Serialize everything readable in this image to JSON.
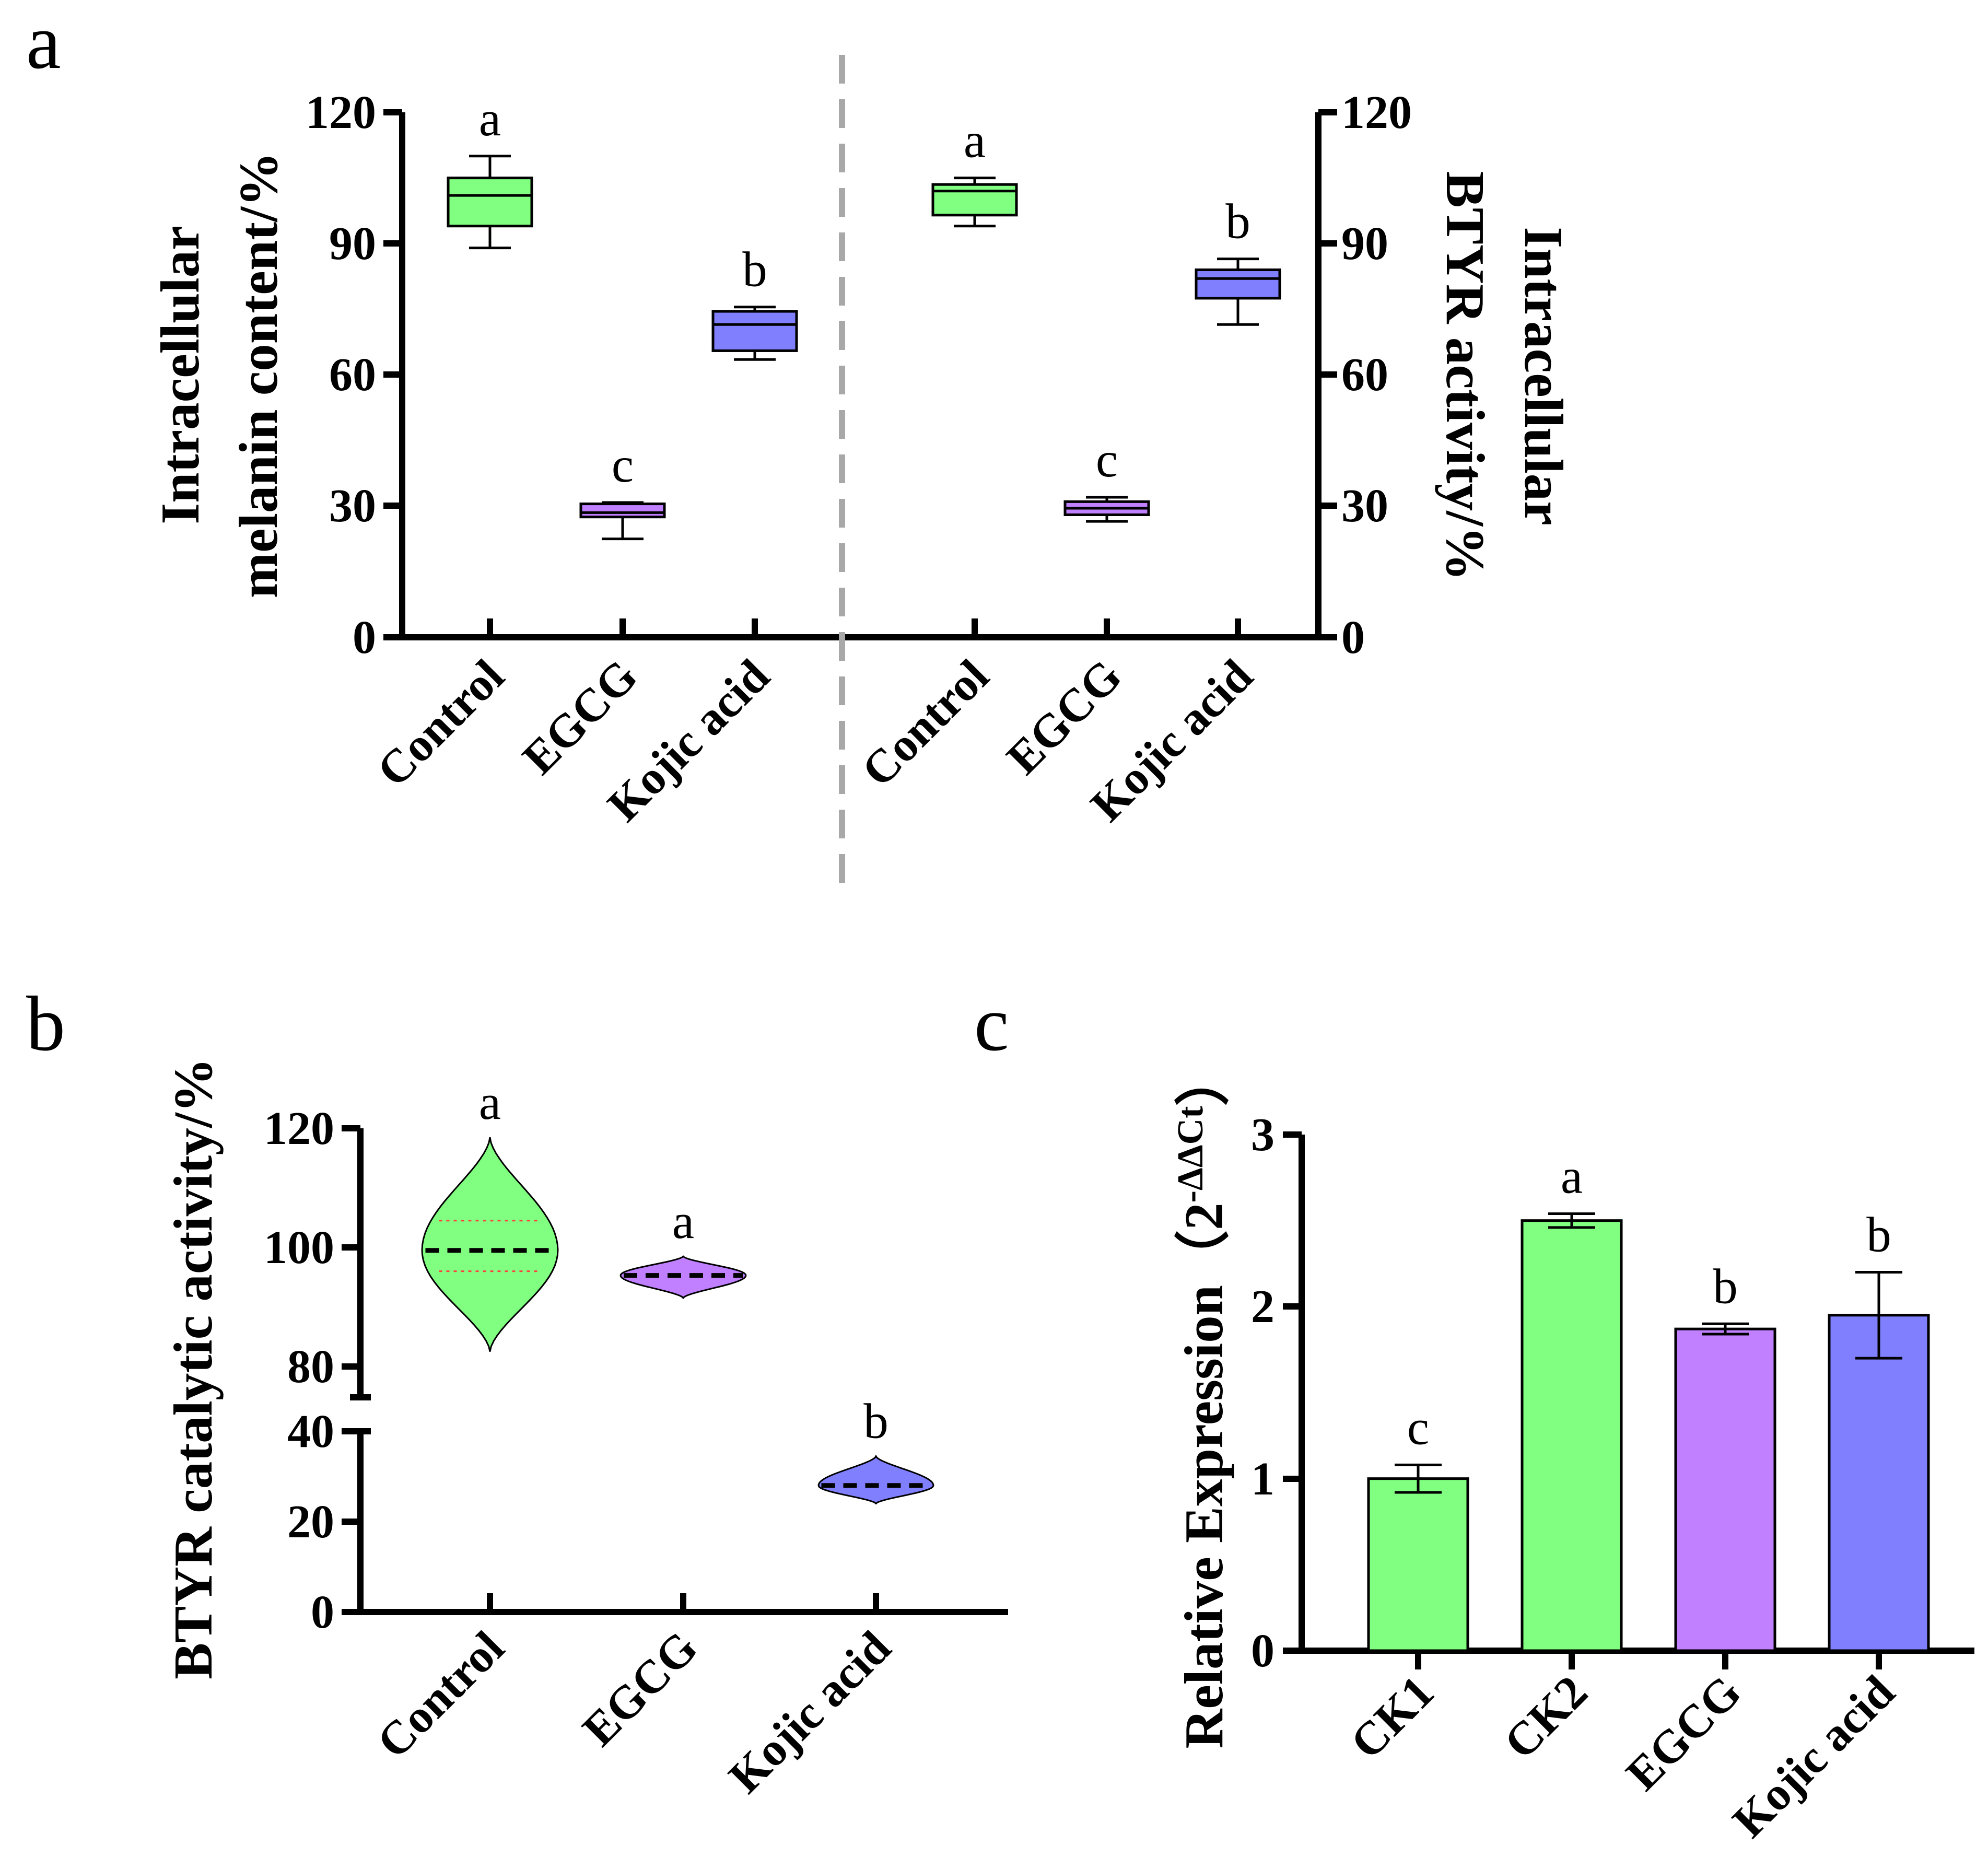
{
  "panels": {
    "a": "a",
    "b": "b",
    "c": "c"
  },
  "chart_data": [
    {
      "id": "a-left",
      "type": "box",
      "ylabel_line1": "Intracellular",
      "ylabel_line2": "melanin content/%",
      "ylim": [
        0,
        120
      ],
      "yticks": [
        "0",
        "30",
        "60",
        "90",
        "120"
      ],
      "categories": [
        "Control",
        "EGCG",
        "Kojic acid"
      ],
      "colors": [
        "#80ff80",
        "#c080ff",
        "#8080ff"
      ],
      "boxes": [
        {
          "min": 89,
          "q1": 94,
          "median": 101,
          "q3": 105,
          "max": 110
        },
        {
          "min": 22.5,
          "q1": 27.5,
          "median": 28.5,
          "q3": 30.5,
          "max": 30.8
        },
        {
          "min": 63.5,
          "q1": 65.5,
          "median": 71.5,
          "q3": 74.5,
          "max": 75.5
        }
      ],
      "significance": [
        "a",
        "c",
        "b"
      ]
    },
    {
      "id": "a-right",
      "type": "box",
      "ylabel_line1": "Intracellular",
      "ylabel_line2": "BTYR  activity/%",
      "ylim": [
        0,
        120
      ],
      "yticks": [
        "0",
        "30",
        "60",
        "90",
        "120"
      ],
      "categories": [
        "Control",
        "EGCG",
        "Kojic acid"
      ],
      "colors": [
        "#80ff80",
        "#c080ff",
        "#8080ff"
      ],
      "boxes": [
        {
          "min": 94,
          "q1": 96.5,
          "median": 102,
          "q3": 103.5,
          "max": 105
        },
        {
          "min": 26.5,
          "q1": 28,
          "median": 29.5,
          "q3": 31,
          "max": 32
        },
        {
          "min": 71.5,
          "q1": 77.5,
          "median": 82,
          "q3": 84,
          "max": 86.5
        }
      ],
      "significance": [
        "a",
        "c",
        "b"
      ]
    },
    {
      "id": "b",
      "type": "violin",
      "ylabel": "BTYR  catalytic activity/%",
      "axis_break": {
        "lower": [
          0,
          40
        ],
        "upper": [
          80,
          120
        ]
      },
      "yticks_upper": [
        "80",
        "100",
        "120"
      ],
      "yticks_lower": [
        "0",
        "20",
        "40"
      ],
      "categories": [
        "Control",
        "EGCG",
        "Kojic acid"
      ],
      "colors": [
        "#80ff80",
        "#c080ff",
        "#8080ff"
      ],
      "violins": [
        {
          "min": 82.5,
          "max": 118.5,
          "median": 99.5,
          "q1": 96,
          "q3": 104.5
        },
        {
          "min": 91.5,
          "max": 98.5,
          "median": 95.3
        },
        {
          "min": 24,
          "max": 34.5,
          "median": 28
        }
      ],
      "significance": [
        "a",
        "a",
        "b"
      ]
    },
    {
      "id": "c",
      "type": "bar",
      "ylabel": "Relative Expression（2",
      "ylabel_exponent": "-ΔΔCt",
      "ylabel_end": "）",
      "ylim": [
        0,
        3
      ],
      "yticks": [
        "0",
        "1",
        "2",
        "3"
      ],
      "categories": [
        "CK1",
        "CK2",
        "EGCG",
        "Kojic acid"
      ],
      "colors": [
        "#80ff80",
        "#80ff80",
        "#c080ff",
        "#8080ff"
      ],
      "values": [
        1.0,
        2.5,
        1.87,
        1.95
      ],
      "errors": [
        0.08,
        0.04,
        0.03,
        0.25
      ],
      "significance": [
        "c",
        "a",
        "b",
        "b"
      ]
    }
  ]
}
